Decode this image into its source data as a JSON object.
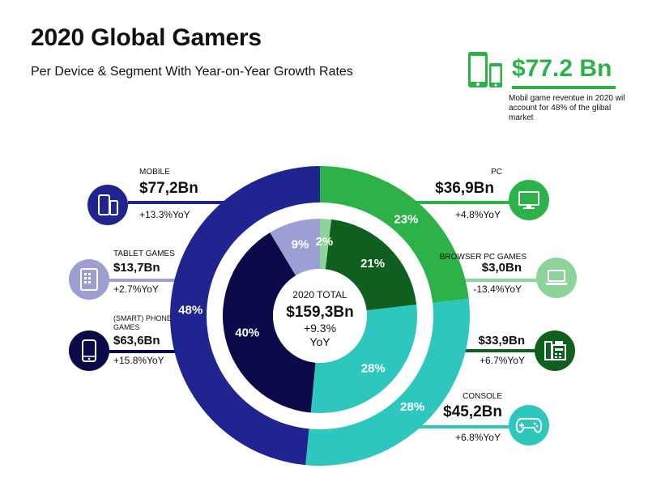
{
  "title": "2020 Global Gamers",
  "subtitle": "Per Device & Segment With Year-on-Year Growth Rates",
  "highlight": {
    "amount": "$77.2 Bn",
    "note": "Mobil game reventue in 2020 wil account for 48% of the glibal market"
  },
  "center": {
    "label": "2020 TOTAL",
    "total": "$159,3Bn",
    "growth": "+9.3%",
    "growth_unit": "YoY"
  },
  "segments": {
    "mobile": {
      "label": "MOBILE",
      "value": "$77,2Bn",
      "yoy": "+13.3%YoY",
      "color": "#1f2490"
    },
    "tablet": {
      "label": "TABLET GAMES",
      "value": "$13,7Bn",
      "yoy": "+2.7%YoY",
      "color": "#9b9fd4"
    },
    "phone": {
      "label": "(SMART) PHONE GAMES",
      "value": "$63,6Bn",
      "yoy": "+15.8%YoY",
      "color": "#0a0a4a"
    },
    "pc": {
      "label": "PC",
      "value": "$36,9Bn",
      "yoy": "+4.8%YoY",
      "color": "#2db24a"
    },
    "browser": {
      "label": "BROWSER PC GAMES",
      "value": "$3,0Bn",
      "yoy": "-13.4%YoY",
      "color": "#8ed39a"
    },
    "boxed": {
      "label": "",
      "value": "$33,9Bn",
      "yoy": "+6.7%YoY",
      "color": "#0f5f1e"
    },
    "console": {
      "label": "CONSOLE",
      "value": "$45,2Bn",
      "yoy": "+6.8%YoY",
      "color": "#2ec7bd"
    }
  },
  "chart_data": {
    "type": "donut",
    "total": 159.3,
    "outer_ring": {
      "slices": [
        {
          "name": "PC",
          "value": 36.9,
          "pct_label": "23%",
          "color": "#2db24a"
        },
        {
          "name": "CONSOLE",
          "value": 45.2,
          "pct_label": "28%",
          "color": "#2ec7bd"
        },
        {
          "name": "MOBILE",
          "value": 77.2,
          "pct_label": "48%",
          "color": "#1f2490"
        }
      ]
    },
    "inner_ring": {
      "slices": [
        {
          "name": "BROWSER PC GAMES",
          "value": 3.0,
          "pct_label": "2%",
          "color": "#8ed39a"
        },
        {
          "name": "",
          "value": 33.9,
          "pct_label": "21%",
          "color": "#0f5f1e"
        },
        {
          "name": "CONSOLE",
          "value": 45.2,
          "pct_label": "28%",
          "color": "#2ec7bd"
        },
        {
          "name": "(SMART) PHONE GAMES",
          "value": 63.6,
          "pct_label": "40%",
          "color": "#0a0a4a"
        },
        {
          "name": "TABLET GAMES",
          "value": 13.7,
          "pct_label": "9%",
          "color": "#9b9fd4"
        }
      ]
    }
  }
}
